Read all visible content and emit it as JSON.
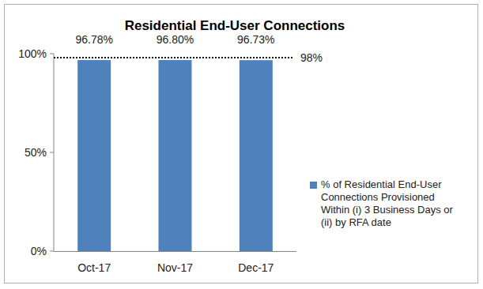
{
  "chart_data": {
    "type": "bar",
    "title": "Residential End-User Connections",
    "categories": [
      "Oct-17",
      "Nov-17",
      "Dec-17"
    ],
    "series": [
      {
        "name": "% of Residential End-User Connections Provisioned Within (i) 3 Business Days or (ii) by RFA date",
        "color": "#4f81bd",
        "values": [
          96.78,
          96.8,
          96.73
        ],
        "value_labels": [
          "96.78%",
          "96.80%",
          "96.73%"
        ]
      }
    ],
    "ylim": [
      0,
      100
    ],
    "yticks": [
      {
        "value": 0,
        "label": "0%"
      },
      {
        "value": 50,
        "label": "50%"
      },
      {
        "value": 100,
        "label": "100%"
      }
    ],
    "annotations": [
      {
        "value": 98,
        "label": "98%"
      }
    ],
    "data_labels": true,
    "legend": "right",
    "grid": false
  }
}
